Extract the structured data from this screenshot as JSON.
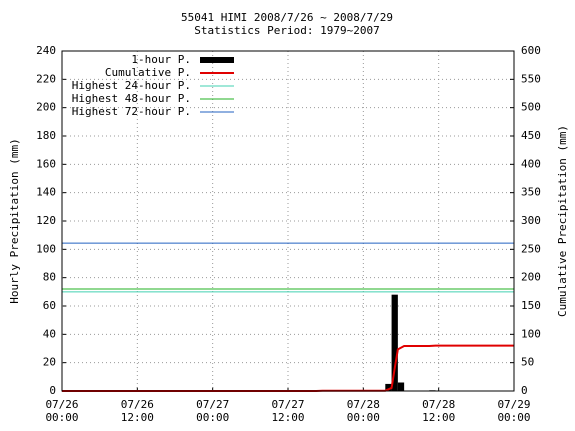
{
  "chart_data": {
    "type": "bar-line",
    "title": "55041 HIMI  2008/7/26 ~ 2008/7/29",
    "subtitle": "Statistics Period: 1979~2007",
    "y_label": "Hourly Precipitation (mm)",
    "y2_label": "Cumulative Precipitation (mm)",
    "xlim": [
      0,
      72
    ],
    "xticks": [
      {
        "value": 0,
        "label": [
          "07/26",
          "00:00"
        ]
      },
      {
        "value": 12,
        "label": [
          "07/26",
          "12:00"
        ]
      },
      {
        "value": 24,
        "label": [
          "07/27",
          "00:00"
        ]
      },
      {
        "value": 36,
        "label": [
          "07/27",
          "12:00"
        ]
      },
      {
        "value": 48,
        "label": [
          "07/28",
          "00:00"
        ]
      },
      {
        "value": 60,
        "label": [
          "07/28",
          "12:00"
        ]
      },
      {
        "value": 72,
        "label": [
          "07/29",
          "00:00"
        ]
      }
    ],
    "ylim": [
      0,
      240
    ],
    "yticks": [
      0,
      20,
      40,
      60,
      80,
      100,
      120,
      140,
      160,
      180,
      200,
      220,
      240
    ],
    "y2lim": [
      0,
      600
    ],
    "y2ticks": [
      0,
      50,
      100,
      150,
      200,
      250,
      300,
      350,
      400,
      450,
      500,
      550,
      600
    ],
    "grid": true,
    "legend": "top-left",
    "series": [
      {
        "name": "1-hour P.",
        "type": "bar",
        "color": "#000000",
        "x": [
          41,
          52,
          53,
          54,
          59
        ],
        "values": [
          0.5,
          5,
          68,
          6,
          0.5
        ]
      },
      {
        "name": "Cumulative P.",
        "type": "line",
        "axis": "y2",
        "color": "#e00000",
        "x": [
          0,
          40.5,
          41.5,
          51.5,
          52.5,
          53,
          53.5,
          54.5,
          58.5,
          59.5,
          72
        ],
        "values": [
          0,
          0,
          0.5,
          0.5,
          5.5,
          40,
          73.5,
          79.5,
          79.5,
          80,
          80
        ]
      },
      {
        "name": "Highest 24-hour P.",
        "type": "line",
        "axis": "y2",
        "color": "#40d0b0",
        "x": [
          0,
          72
        ],
        "values": [
          175,
          175
        ]
      },
      {
        "name": "Highest 48-hour P.",
        "type": "line",
        "axis": "y2",
        "color": "#20b020",
        "x": [
          0,
          72
        ],
        "values": [
          180,
          180
        ]
      },
      {
        "name": "Highest 72-hour P.",
        "type": "line",
        "axis": "y2",
        "color": "#2060c0",
        "x": [
          0,
          72
        ],
        "values": [
          261,
          261
        ]
      }
    ]
  }
}
